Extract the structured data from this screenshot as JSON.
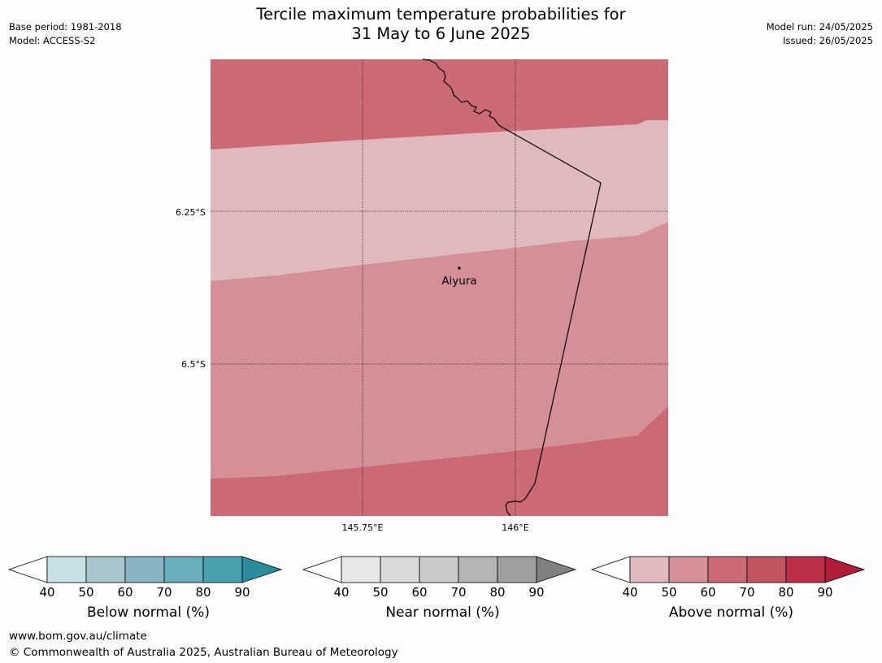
{
  "header": {
    "title_line1": "Tercile maximum temperature probabilities for",
    "title_line2": "31 May to 6 June 2025",
    "base_period": "Base period: 1981-2018",
    "model": "Model: ACCESS-S2",
    "model_run": "Model run: 24/05/2025",
    "issued": "Issued: 26/05/2025"
  },
  "map": {
    "lat_labels": [
      "6.25°S",
      "6.5°S"
    ],
    "lon_labels": [
      "145.75°E",
      "146°E"
    ],
    "place_name": "Aiyura",
    "zone_colors": [
      "#e0b9bd",
      "#d58f97",
      "#cb6a74"
    ]
  },
  "colorbars": [
    {
      "title": "Below normal (%)",
      "ticks": [
        "40",
        "50",
        "60",
        "70",
        "80",
        "90"
      ],
      "colors": [
        "#c8e0e6",
        "#a7c6cc",
        "#88b4c2",
        "#6aaebb",
        "#49a0af"
      ],
      "end_color": "#2a8c9c"
    },
    {
      "title": "Near normal (%)",
      "ticks": [
        "40",
        "50",
        "60",
        "70",
        "80",
        "90"
      ],
      "colors": [
        "#e8e8e8",
        "#dadada",
        "#c9c9c9",
        "#b5b5b5",
        "#a0a0a0"
      ],
      "end_color": "#808080"
    },
    {
      "title": "Above normal (%)",
      "ticks": [
        "40",
        "50",
        "60",
        "70",
        "80",
        "90"
      ],
      "colors": [
        "#e0b9bd",
        "#d58f97",
        "#cb6a74",
        "#c25462",
        "#bb3048"
      ],
      "end_color": "#b01c3a"
    }
  ],
  "footer": {
    "url": "www.bom.gov.au/climate",
    "copyright": "© Commonwealth of Australia 2025, Australian Bureau of Meteorology"
  }
}
